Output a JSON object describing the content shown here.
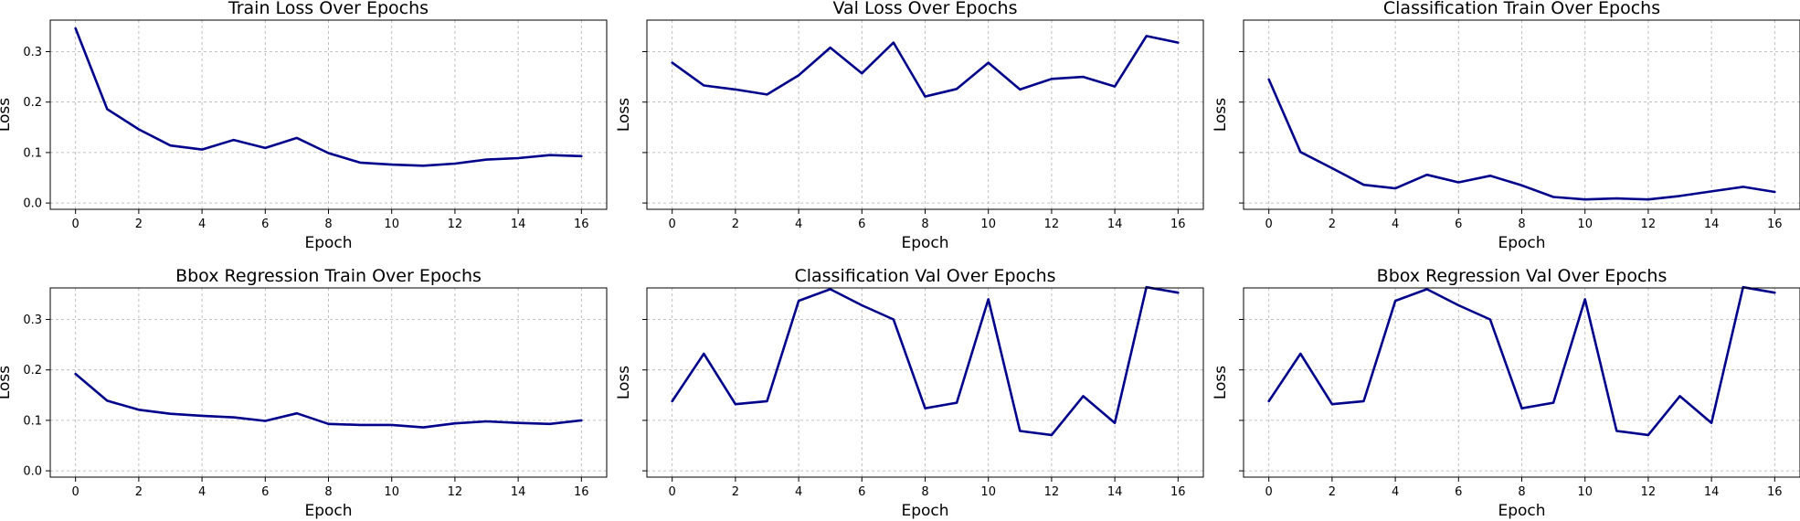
{
  "figure": {
    "line_color": "#00008b",
    "grid": true
  },
  "chart_data": [
    {
      "type": "line",
      "title": "Train Loss Over Epochs",
      "xlabel": "Epoch",
      "ylabel": "Loss",
      "xlim": [
        -0.8,
        16.8
      ],
      "ylim": [
        -0.0125,
        0.3625
      ],
      "xticks": [
        "0",
        "2",
        "4",
        "6",
        "8",
        "10",
        "12",
        "14",
        "16"
      ],
      "yticks": [
        "0.0",
        "0.1",
        "0.2",
        "0.3"
      ],
      "show_ytick_labels": true,
      "x": [
        0,
        1,
        2,
        3,
        4,
        5,
        6,
        7,
        8,
        9,
        10,
        11,
        12,
        13,
        14,
        15,
        16
      ],
      "series": [
        {
          "values": [
            0.346,
            0.186,
            0.146,
            0.114,
            0.106,
            0.125,
            0.109,
            0.129,
            0.099,
            0.08,
            0.076,
            0.074,
            0.078,
            0.086,
            0.089,
            0.095,
            0.093
          ]
        }
      ]
    },
    {
      "type": "line",
      "title": "Val Loss Over Epochs",
      "xlabel": "Epoch",
      "ylabel": "Loss",
      "xlim": [
        -0.8,
        16.8
      ],
      "ylim": [
        -0.0125,
        0.3625
      ],
      "xticks": [
        "0",
        "2",
        "4",
        "6",
        "8",
        "10",
        "12",
        "14",
        "16"
      ],
      "yticks": [
        "",
        "",
        "",
        ""
      ],
      "show_ytick_labels": false,
      "x": [
        0,
        1,
        2,
        3,
        4,
        5,
        6,
        7,
        8,
        9,
        10,
        11,
        12,
        13,
        14,
        15,
        16
      ],
      "series": [
        {
          "values": [
            0.278,
            0.233,
            0.225,
            0.215,
            0.253,
            0.308,
            0.257,
            0.318,
            0.211,
            0.226,
            0.278,
            0.225,
            0.246,
            0.25,
            0.231,
            0.331,
            0.318
          ]
        }
      ]
    },
    {
      "type": "line",
      "title": "Classification Train Over Epochs",
      "xlabel": "Epoch",
      "ylabel": "Loss",
      "xlim": [
        -0.8,
        16.8
      ],
      "ylim": [
        -0.0125,
        0.3625
      ],
      "xticks": [
        "0",
        "2",
        "4",
        "6",
        "8",
        "10",
        "12",
        "14",
        "16"
      ],
      "yticks": [
        "",
        "",
        "",
        ""
      ],
      "show_ytick_labels": false,
      "x": [
        0,
        1,
        2,
        3,
        4,
        5,
        6,
        7,
        8,
        9,
        10,
        11,
        12,
        13,
        14,
        15,
        16
      ],
      "series": [
        {
          "values": [
            0.245,
            0.101,
            0.069,
            0.036,
            0.029,
            0.056,
            0.041,
            0.054,
            0.035,
            0.012,
            0.007,
            0.009,
            0.007,
            0.014,
            0.023,
            0.032,
            0.022
          ]
        }
      ]
    },
    {
      "type": "line",
      "title": "Bbox Regression Train Over Epochs",
      "xlabel": "Epoch",
      "ylabel": "Loss",
      "xlim": [
        -0.8,
        16.8
      ],
      "ylim": [
        -0.0125,
        0.3625
      ],
      "xticks": [
        "0",
        "2",
        "4",
        "6",
        "8",
        "10",
        "12",
        "14",
        "16"
      ],
      "yticks": [
        "0.0",
        "0.1",
        "0.2",
        "0.3"
      ],
      "show_ytick_labels": true,
      "x": [
        0,
        1,
        2,
        3,
        4,
        5,
        6,
        7,
        8,
        9,
        10,
        11,
        12,
        13,
        14,
        15,
        16
      ],
      "series": [
        {
          "values": [
            0.192,
            0.139,
            0.121,
            0.113,
            0.109,
            0.106,
            0.099,
            0.114,
            0.093,
            0.091,
            0.091,
            0.086,
            0.094,
            0.098,
            0.095,
            0.093,
            0.1
          ]
        }
      ]
    },
    {
      "type": "line",
      "title": "Classification Val Over Epochs",
      "xlabel": "Epoch",
      "ylabel": "Loss",
      "xlim": [
        -0.8,
        16.8
      ],
      "ylim": [
        -0.0125,
        0.3625
      ],
      "xticks": [
        "0",
        "2",
        "4",
        "6",
        "8",
        "10",
        "12",
        "14",
        "16"
      ],
      "yticks": [
        "",
        "",
        "",
        ""
      ],
      "show_ytick_labels": false,
      "x": [
        0,
        1,
        2,
        3,
        4,
        5,
        6,
        7,
        8,
        9,
        10,
        11,
        12,
        13,
        14,
        15,
        16
      ],
      "series": [
        {
          "values": [
            0.138,
            0.232,
            0.132,
            0.138,
            0.337,
            0.36,
            0.328,
            0.3,
            0.124,
            0.135,
            0.34,
            0.079,
            0.071,
            0.148,
            0.095,
            0.364,
            0.353
          ]
        }
      ]
    },
    {
      "type": "line",
      "title": "Bbox Regression Val Over Epochs",
      "xlabel": "Epoch",
      "ylabel": "Loss",
      "xlim": [
        -0.8,
        16.8
      ],
      "ylim": [
        -0.0125,
        0.3625
      ],
      "xticks": [
        "0",
        "2",
        "4",
        "6",
        "8",
        "10",
        "12",
        "14",
        "16"
      ],
      "yticks": [
        "",
        "",
        "",
        ""
      ],
      "show_ytick_labels": false,
      "x": [
        0,
        1,
        2,
        3,
        4,
        5,
        6,
        7,
        8,
        9,
        10,
        11,
        12,
        13,
        14,
        15,
        16
      ],
      "series": [
        {
          "values": [
            0.138,
            0.232,
            0.132,
            0.138,
            0.337,
            0.36,
            0.328,
            0.3,
            0.124,
            0.135,
            0.34,
            0.079,
            0.071,
            0.148,
            0.095,
            0.364,
            0.353
          ]
        }
      ]
    }
  ]
}
